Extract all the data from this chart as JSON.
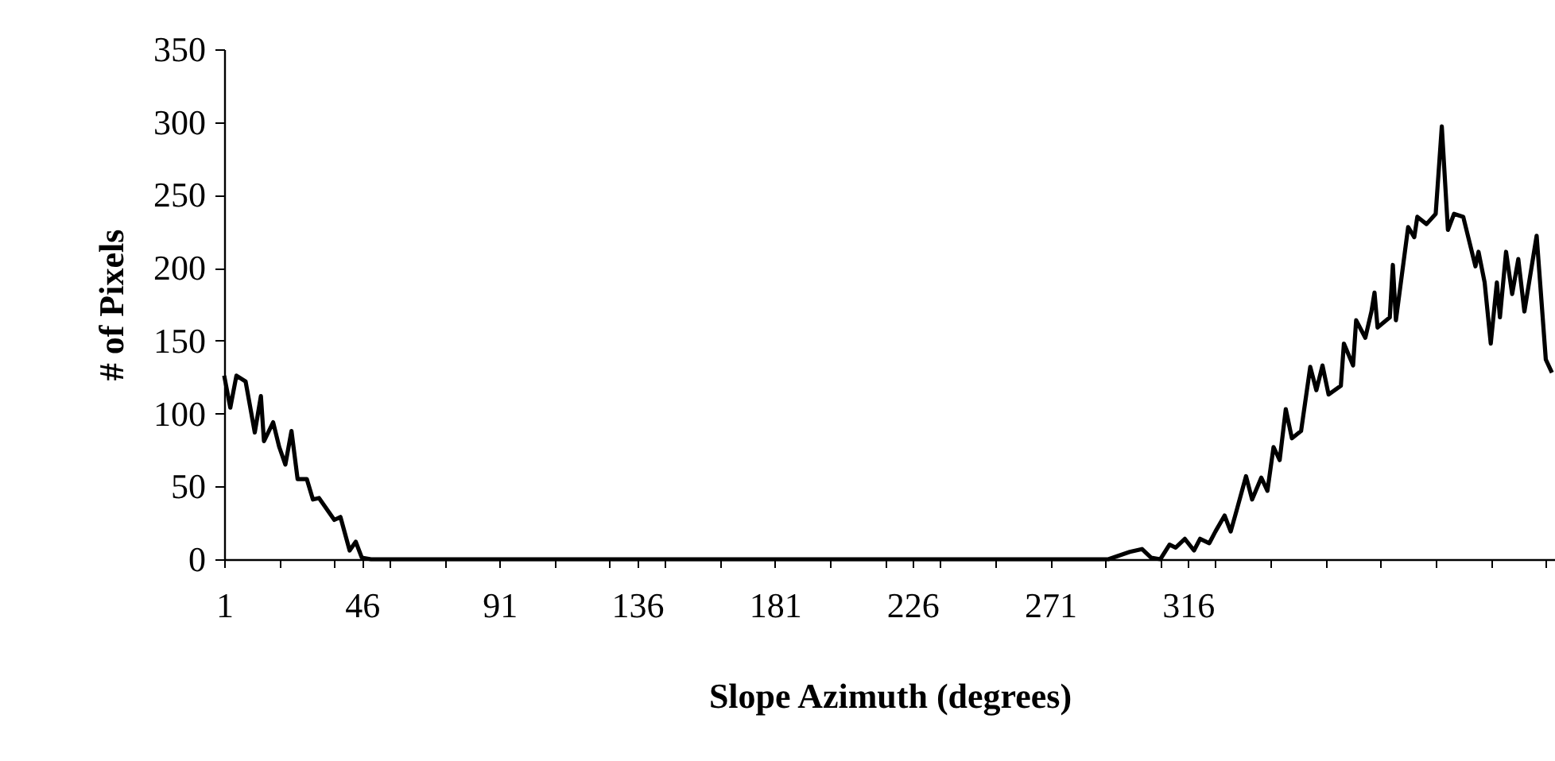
{
  "chart_data": {
    "type": "line",
    "xlabel": "Slope Azimuth (degrees)",
    "ylabel": "# of Pixels",
    "color": "#000000",
    "x": [
      1,
      3,
      5,
      8,
      11,
      13,
      14,
      17,
      19,
      21,
      23,
      25,
      28,
      30,
      32,
      37,
      39,
      42,
      44,
      46,
      49,
      200,
      290,
      297,
      301,
      304,
      307,
      310,
      312,
      315,
      318,
      320,
      323,
      325,
      328,
      330,
      332,
      335,
      337,
      340,
      342,
      344,
      346,
      348,
      350,
      353,
      356,
      358,
      360,
      362,
      366,
      367,
      370,
      371,
      374,
      376,
      377,
      378,
      382,
      383,
      384,
      388,
      390,
      391,
      394,
      397,
      399,
      401,
      403,
      406,
      410,
      411,
      413,
      415,
      417,
      418,
      420,
      422,
      424,
      426,
      430,
      433,
      435
    ],
    "values": [
      126,
      104,
      126,
      122,
      87,
      112,
      81,
      94,
      77,
      65,
      88,
      55,
      55,
      41,
      42,
      27,
      29,
      6,
      12,
      1,
      0,
      0,
      0,
      5,
      7,
      1,
      0,
      10,
      8,
      14,
      6,
      14,
      11,
      19,
      30,
      19,
      34,
      57,
      41,
      56,
      47,
      77,
      68,
      103,
      83,
      88,
      132,
      116,
      133,
      113,
      119,
      148,
      133,
      164,
      152,
      170,
      183,
      159,
      166,
      202,
      164,
      228,
      221,
      235,
      230,
      237,
      297,
      226,
      237,
      235,
      201,
      211,
      190,
      148,
      190,
      166,
      211,
      182,
      206,
      170,
      222,
      137,
      128
    ],
    "xlim": [
      1,
      436
    ],
    "ylim": [
      0,
      350
    ],
    "yticks": [
      0,
      50,
      100,
      150,
      200,
      250,
      300,
      350
    ],
    "xticks": [
      1,
      {
        "value": 19,
        "label": null
      },
      {
        "value": 37,
        "label": null
      },
      46,
      {
        "value": 55,
        "label": null
      },
      {
        "value": 73,
        "label": null
      },
      91,
      {
        "value": 109,
        "label": null
      },
      {
        "value": 127,
        "label": null
      },
      136,
      {
        "value": 145,
        "label": null
      },
      {
        "value": 163,
        "label": null
      },
      181,
      {
        "value": 199,
        "label": null
      },
      {
        "value": 217,
        "label": null
      },
      226,
      {
        "value": 235,
        "label": null
      },
      {
        "value": 253,
        "label": null
      },
      271,
      {
        "value": 289,
        "label": null
      },
      {
        "value": 307,
        "label": null
      },
      316,
      {
        "value": 325,
        "label": null
      },
      {
        "value": 343,
        "label": null
      },
      {
        "value": 361,
        "label": null
      },
      {
        "value": 379,
        "label": null
      },
      {
        "value": 397,
        "label": null
      },
      {
        "value": 415,
        "label": null
      },
      {
        "value": 433,
        "label": null
      }
    ]
  }
}
